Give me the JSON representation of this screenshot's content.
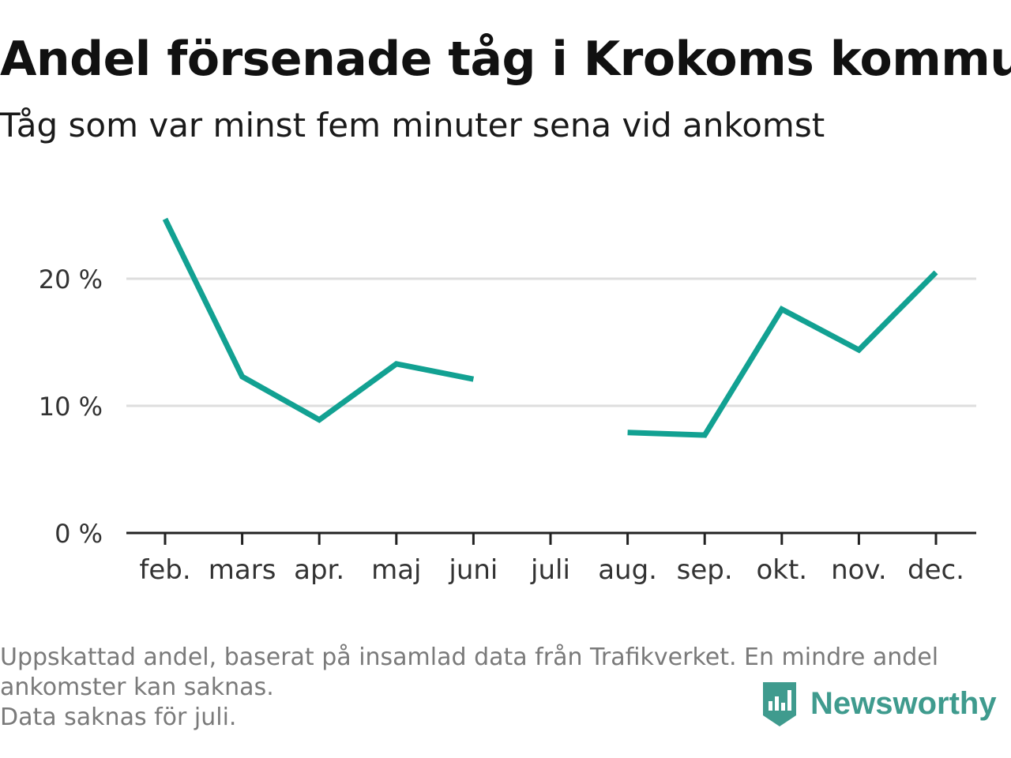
{
  "header": {
    "title": "Andel försenade tåg i Krokoms kommun",
    "subtitle": "Tåg som var minst fem minuter sena vid ankomst"
  },
  "chart_data": {
    "type": "line",
    "categories": [
      "feb.",
      "mars",
      "apr.",
      "maj",
      "juni",
      "juli",
      "aug.",
      "sep.",
      "okt.",
      "nov.",
      "dec."
    ],
    "series": [
      {
        "values": [
          24.7,
          12.3,
          8.9,
          13.3,
          12.1,
          null,
          7.9,
          7.7,
          17.6,
          14.4,
          20.5
        ]
      }
    ],
    "y_ticks": [
      0,
      10,
      20
    ],
    "y_tick_labels": [
      "0 %",
      "10 %",
      "20 %"
    ],
    "ylim": [
      0,
      25
    ],
    "grid": true,
    "line_color": "#12a192"
  },
  "footnote": {
    "lines": [
      "Uppskattad andel, baserat på insamlad data från Trafikverket. En mindre andel",
      "ankomster kan saknas.",
      "Data saknas för juli."
    ]
  },
  "brand": {
    "name": "Newsworthy",
    "icon": "newsworthy-logo-icon",
    "color": "#3f9b8e"
  }
}
